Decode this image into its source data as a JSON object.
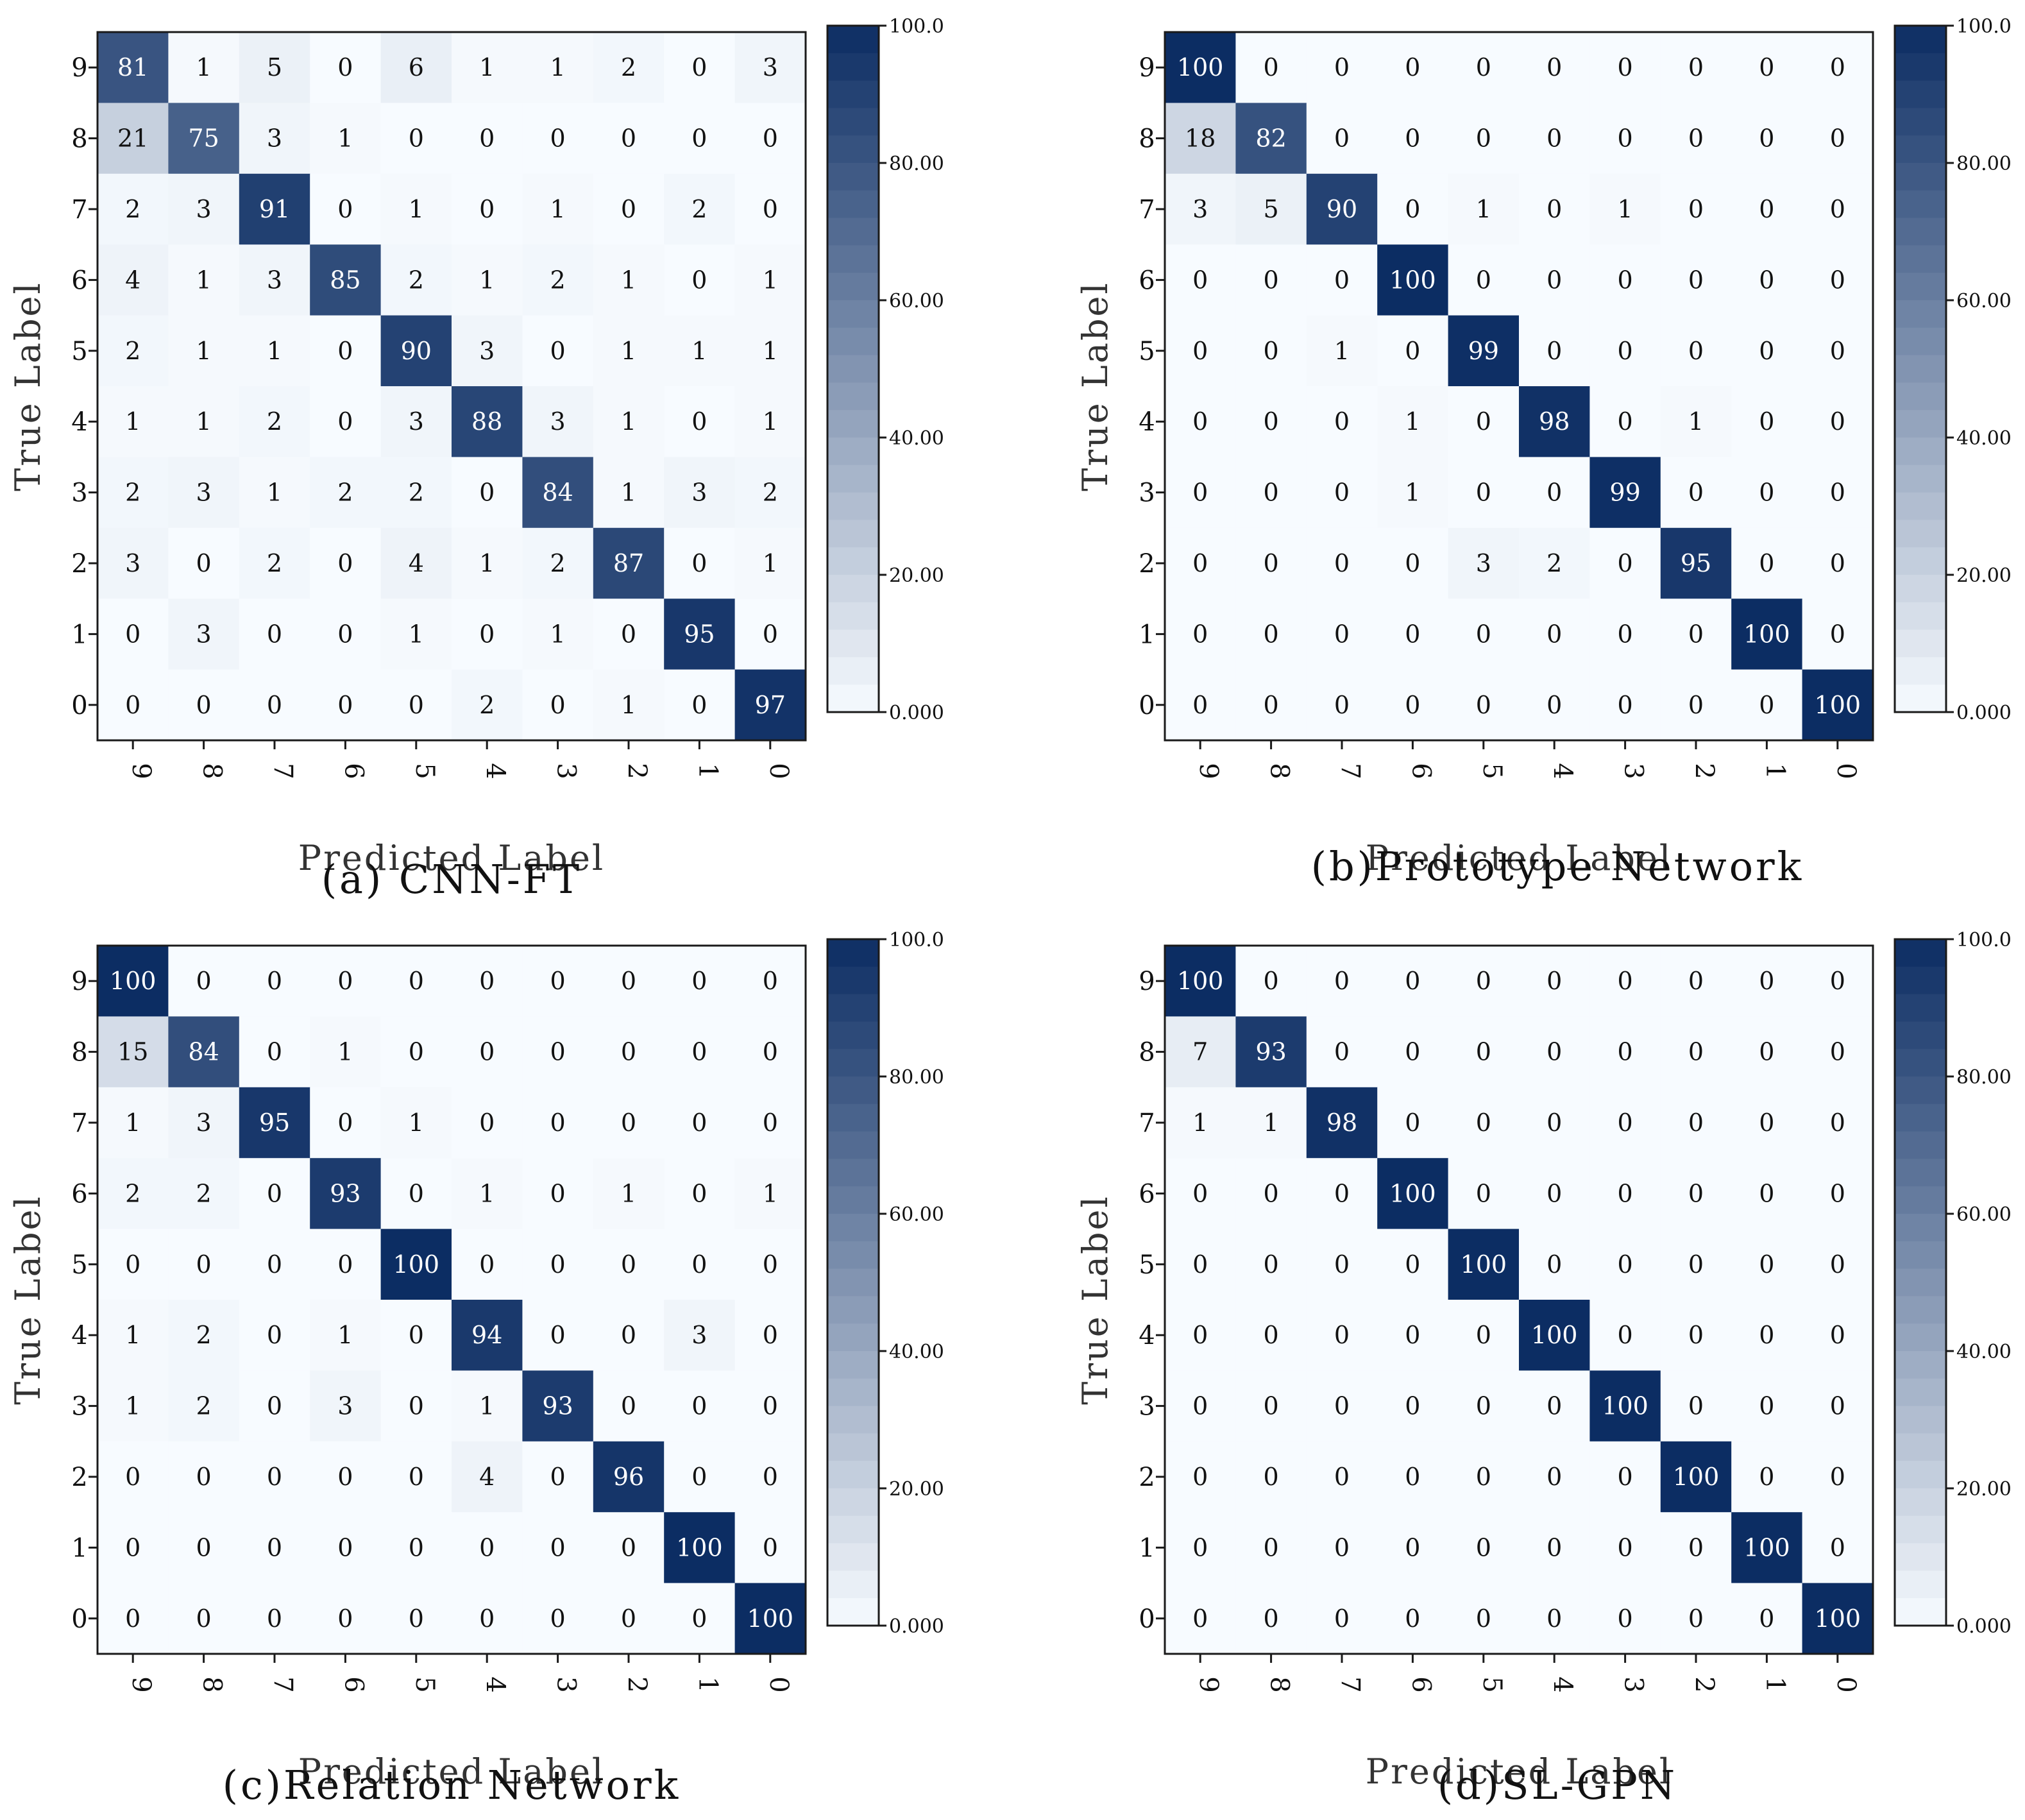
{
  "figure": {
    "colormap": {
      "low": "#f7fbff",
      "high": "#0c2d63",
      "border": "#1a1a1a",
      "text_dark": "#111111",
      "text_light": "#ffffff"
    },
    "colorbar_ticks": [
      "100.0",
      "80.00",
      "60.00",
      "40.00",
      "20.00",
      "0.000"
    ]
  },
  "chart_data": [
    {
      "type": "heatmap",
      "caption": "(a) CNN-FT",
      "xlabel": "Predicted Label",
      "ylabel": "True Label",
      "x_labels": [
        "9",
        "8",
        "7",
        "6",
        "5",
        "4",
        "3",
        "2",
        "1",
        "0"
      ],
      "y_labels": [
        "9",
        "8",
        "7",
        "6",
        "5",
        "4",
        "3",
        "2",
        "1",
        "0"
      ],
      "vmin": 0,
      "vmax": 100,
      "values": [
        [
          81,
          1,
          5,
          0,
          6,
          1,
          1,
          2,
          0,
          3
        ],
        [
          21,
          75,
          3,
          1,
          0,
          0,
          0,
          0,
          0,
          0
        ],
        [
          2,
          3,
          91,
          0,
          1,
          0,
          1,
          0,
          2,
          0
        ],
        [
          4,
          1,
          3,
          85,
          2,
          1,
          2,
          1,
          0,
          1
        ],
        [
          2,
          1,
          1,
          0,
          90,
          3,
          0,
          1,
          1,
          1
        ],
        [
          1,
          1,
          2,
          0,
          3,
          88,
          3,
          1,
          0,
          1
        ],
        [
          2,
          3,
          1,
          2,
          2,
          0,
          84,
          1,
          3,
          2
        ],
        [
          3,
          0,
          2,
          0,
          4,
          1,
          2,
          87,
          0,
          1
        ],
        [
          0,
          3,
          0,
          0,
          1,
          0,
          1,
          0,
          95,
          0
        ],
        [
          0,
          0,
          0,
          0,
          0,
          2,
          0,
          1,
          0,
          97
        ]
      ]
    },
    {
      "type": "heatmap",
      "caption": "(b)Prototype Network",
      "xlabel": "Predicted Label",
      "ylabel": "True Label",
      "x_labels": [
        "9",
        "8",
        "7",
        "6",
        "5",
        "4",
        "3",
        "2",
        "1",
        "0"
      ],
      "y_labels": [
        "9",
        "8",
        "7",
        "6",
        "5",
        "4",
        "3",
        "2",
        "1",
        "0"
      ],
      "vmin": 0,
      "vmax": 100,
      "values": [
        [
          100,
          0,
          0,
          0,
          0,
          0,
          0,
          0,
          0,
          0
        ],
        [
          18,
          82,
          0,
          0,
          0,
          0,
          0,
          0,
          0,
          0
        ],
        [
          3,
          5,
          90,
          0,
          1,
          0,
          1,
          0,
          0,
          0
        ],
        [
          0,
          0,
          0,
          100,
          0,
          0,
          0,
          0,
          0,
          0
        ],
        [
          0,
          0,
          1,
          0,
          99,
          0,
          0,
          0,
          0,
          0
        ],
        [
          0,
          0,
          0,
          1,
          0,
          98,
          0,
          1,
          0,
          0
        ],
        [
          0,
          0,
          0,
          1,
          0,
          0,
          99,
          0,
          0,
          0
        ],
        [
          0,
          0,
          0,
          0,
          3,
          2,
          0,
          95,
          0,
          0
        ],
        [
          0,
          0,
          0,
          0,
          0,
          0,
          0,
          0,
          100,
          0
        ],
        [
          0,
          0,
          0,
          0,
          0,
          0,
          0,
          0,
          0,
          100
        ]
      ]
    },
    {
      "type": "heatmap",
      "caption": "(c)Relation Network",
      "xlabel": "Predicted Label",
      "ylabel": "True Label",
      "x_labels": [
        "9",
        "8",
        "7",
        "6",
        "5",
        "4",
        "3",
        "2",
        "1",
        "0"
      ],
      "y_labels": [
        "9",
        "8",
        "7",
        "6",
        "5",
        "4",
        "3",
        "2",
        "1",
        "0"
      ],
      "vmin": 0,
      "vmax": 100,
      "values": [
        [
          100,
          0,
          0,
          0,
          0,
          0,
          0,
          0,
          0,
          0
        ],
        [
          15,
          84,
          0,
          1,
          0,
          0,
          0,
          0,
          0,
          0
        ],
        [
          1,
          3,
          95,
          0,
          1,
          0,
          0,
          0,
          0,
          0
        ],
        [
          2,
          2,
          0,
          93,
          0,
          1,
          0,
          1,
          0,
          1
        ],
        [
          0,
          0,
          0,
          0,
          100,
          0,
          0,
          0,
          0,
          0
        ],
        [
          1,
          2,
          0,
          1,
          0,
          94,
          0,
          0,
          3,
          0
        ],
        [
          1,
          2,
          0,
          3,
          0,
          1,
          93,
          0,
          0,
          0
        ],
        [
          0,
          0,
          0,
          0,
          0,
          4,
          0,
          96,
          0,
          0
        ],
        [
          0,
          0,
          0,
          0,
          0,
          0,
          0,
          0,
          100,
          0
        ],
        [
          0,
          0,
          0,
          0,
          0,
          0,
          0,
          0,
          0,
          100
        ]
      ]
    },
    {
      "type": "heatmap",
      "caption": "(d)SL-GPN",
      "xlabel": "Predicted Label",
      "ylabel": "True Label",
      "x_labels": [
        "9",
        "8",
        "7",
        "6",
        "5",
        "4",
        "3",
        "2",
        "1",
        "0"
      ],
      "y_labels": [
        "9",
        "8",
        "7",
        "6",
        "5",
        "4",
        "3",
        "2",
        "1",
        "0"
      ],
      "vmin": 0,
      "vmax": 100,
      "values": [
        [
          100,
          0,
          0,
          0,
          0,
          0,
          0,
          0,
          0,
          0
        ],
        [
          7,
          93,
          0,
          0,
          0,
          0,
          0,
          0,
          0,
          0
        ],
        [
          1,
          1,
          98,
          0,
          0,
          0,
          0,
          0,
          0,
          0
        ],
        [
          0,
          0,
          0,
          100,
          0,
          0,
          0,
          0,
          0,
          0
        ],
        [
          0,
          0,
          0,
          0,
          100,
          0,
          0,
          0,
          0,
          0
        ],
        [
          0,
          0,
          0,
          0,
          0,
          100,
          0,
          0,
          0,
          0
        ],
        [
          0,
          0,
          0,
          0,
          0,
          0,
          100,
          0,
          0,
          0
        ],
        [
          0,
          0,
          0,
          0,
          0,
          0,
          0,
          100,
          0,
          0
        ],
        [
          0,
          0,
          0,
          0,
          0,
          0,
          0,
          0,
          100,
          0
        ],
        [
          0,
          0,
          0,
          0,
          0,
          0,
          0,
          0,
          0,
          100
        ]
      ]
    }
  ]
}
